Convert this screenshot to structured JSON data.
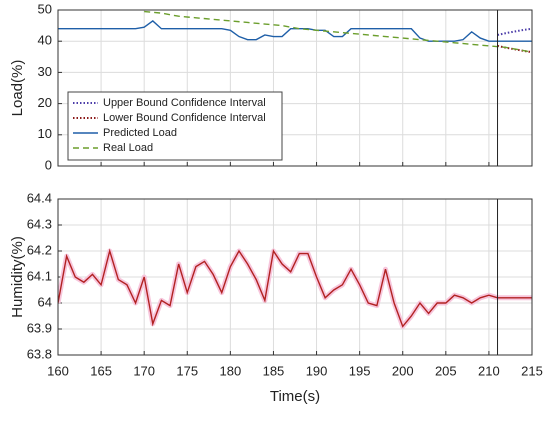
{
  "chart_data": [
    {
      "type": "line",
      "ylabel": "Load(%)",
      "xlim": [
        160,
        215
      ],
      "xticks": [
        160,
        165,
        170,
        175,
        180,
        185,
        190,
        195,
        200,
        205,
        210,
        215
      ],
      "xtick_labels": false,
      "ylim": [
        0,
        50
      ],
      "yticks": [
        0,
        10,
        20,
        30,
        40,
        50
      ],
      "grid": true,
      "legend": "lower left",
      "vline": 211,
      "series": [
        {
          "name": "Upper Bound Confidence Interval",
          "color": "#4b3ca8",
          "style": "dotted",
          "x": [
            211,
            212,
            213,
            214,
            215
          ],
          "values": [
            42,
            42.6,
            43.1,
            43.6,
            44
          ]
        },
        {
          "name": "Lower Bound Confidence Interval",
          "color": "#8b1a1a",
          "style": "dotted",
          "x": [
            211,
            212,
            213,
            214,
            215
          ],
          "values": [
            38.5,
            37.9,
            37.4,
            36.9,
            36.5
          ]
        },
        {
          "name": "Predicted Load",
          "color": "#1f5fa8",
          "style": "solid",
          "x": [
            160,
            161,
            162,
            163,
            164,
            165,
            166,
            167,
            168,
            169,
            170,
            171,
            172,
            173,
            174,
            175,
            176,
            177,
            178,
            179,
            180,
            181,
            182,
            183,
            184,
            185,
            186,
            187,
            188,
            189,
            190,
            191,
            192,
            193,
            194,
            195,
            196,
            197,
            198,
            199,
            200,
            201,
            202,
            203,
            204,
            205,
            206,
            207,
            208,
            209,
            210,
            211,
            212,
            213,
            214,
            215
          ],
          "values": [
            44,
            44,
            44,
            44,
            44,
            44,
            44,
            44,
            44,
            44,
            44.5,
            46.5,
            44,
            44,
            44,
            44,
            44,
            44,
            44,
            44,
            43.5,
            41.5,
            40.5,
            40.5,
            42,
            41.5,
            41.5,
            44,
            44,
            44,
            43.5,
            43.5,
            41.5,
            41.5,
            44,
            44,
            44,
            44,
            44,
            44,
            44,
            44,
            41,
            40,
            40,
            40,
            40,
            40.5,
            43,
            41,
            40,
            40,
            40,
            40,
            40,
            40
          ]
        },
        {
          "name": "Real Load",
          "color": "#6b9e2c",
          "style": "dashed",
          "x": [
            170,
            172,
            174,
            176,
            178,
            180,
            182,
            184,
            186,
            188,
            190,
            192,
            194,
            196,
            198,
            200,
            202,
            204,
            206,
            208,
            210,
            212,
            214,
            215
          ],
          "values": [
            49.5,
            49,
            48,
            47.5,
            47,
            46.5,
            46,
            45.5,
            45,
            44,
            43.5,
            43,
            42.5,
            42,
            41.5,
            41,
            40.5,
            40,
            39.5,
            39,
            38.5,
            38,
            37,
            36.5
          ]
        }
      ]
    },
    {
      "type": "line",
      "ylabel": "Humidity(%)",
      "xlabel": "Time(s)",
      "xlim": [
        160,
        215
      ],
      "xticks": [
        160,
        165,
        170,
        175,
        180,
        185,
        190,
        195,
        200,
        205,
        210,
        215
      ],
      "ylim": [
        63.8,
        64.4
      ],
      "yticks": [
        63.8,
        63.9,
        64,
        64.1,
        64.2,
        64.3,
        64.4
      ],
      "grid": true,
      "vline": 211,
      "series": [
        {
          "color": "#b22222",
          "style": "solid",
          "x": [
            160,
            161,
            162,
            163,
            164,
            165,
            166,
            167,
            168,
            169,
            170,
            171,
            172,
            173,
            174,
            175,
            176,
            177,
            178,
            179,
            180,
            181,
            182,
            183,
            184,
            185,
            186,
            187,
            188,
            189,
            190,
            191,
            192,
            193,
            194,
            195,
            196,
            197,
            198,
            199,
            200,
            201,
            202,
            203,
            204,
            205,
            206,
            207,
            208,
            209,
            210,
            211,
            212,
            213,
            214,
            215
          ],
          "values": [
            64.0,
            64.18,
            64.1,
            64.08,
            64.11,
            64.07,
            64.2,
            64.09,
            64.07,
            64.0,
            64.1,
            63.92,
            64.01,
            63.99,
            64.15,
            64.04,
            64.14,
            64.16,
            64.11,
            64.04,
            64.14,
            64.2,
            64.15,
            64.09,
            64.01,
            64.2,
            64.15,
            64.12,
            64.19,
            64.19,
            64.1,
            64.02,
            64.05,
            64.07,
            64.13,
            64.07,
            64.0,
            63.99,
            64.13,
            64.0,
            63.91,
            63.95,
            64.0,
            63.96,
            64.0,
            64.0,
            64.03,
            64.02,
            64.0,
            64.02,
            64.03,
            64.02,
            64.02,
            64.02,
            64.02,
            64.02
          ]
        }
      ]
    }
  ]
}
